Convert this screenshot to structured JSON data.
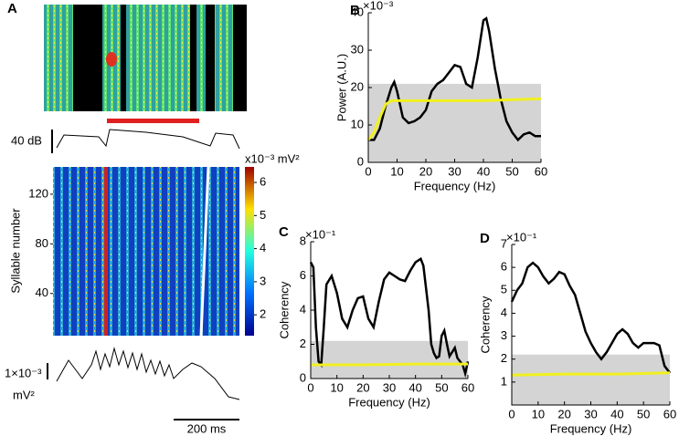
{
  "panels": {
    "a": "A",
    "b": "B",
    "c": "C",
    "d": "D"
  },
  "panel_a": {
    "amplitude_scale": "40 dB",
    "raster": {
      "ylabel": "Syllable number",
      "ylim": [
        6,
        142
      ],
      "yticks": [
        40,
        80,
        120
      ]
    },
    "colorbar": {
      "label": "x10⁻³ mV²",
      "lim": [
        1.37,
        6.47
      ],
      "ticks": [
        2,
        3,
        4,
        5,
        6
      ]
    },
    "power_scale": [
      "1×10⁻³",
      "mV²"
    ],
    "time_scale": "200 ms"
  },
  "chart_data": [
    {
      "type": "line",
      "multiplier": "×10⁻³",
      "ylabel": "Power (A.U.)",
      "xlabel": "Frequency (Hz)",
      "xlim": [
        0,
        60
      ],
      "xticks": [
        0,
        10,
        20,
        30,
        40,
        50,
        60
      ],
      "ylim": [
        0,
        40
      ],
      "yticks": [
        0,
        10,
        20,
        30,
        40
      ],
      "band": [
        0,
        21
      ],
      "band_color": "#d4d4d4",
      "series": [
        {
          "color": "#000000",
          "x": [
            0,
            2,
            4,
            6,
            8,
            9,
            10,
            12,
            14,
            16,
            18,
            20,
            22,
            24,
            26,
            28,
            30,
            32,
            34,
            36,
            38,
            40,
            41,
            42,
            44,
            46,
            48,
            50,
            52,
            54,
            56,
            58,
            60
          ],
          "values": [
            6,
            6,
            9,
            15,
            20,
            21.5,
            19,
            12,
            10.5,
            11,
            12,
            14,
            19,
            21,
            22,
            24,
            26,
            25.5,
            21,
            20,
            28,
            38,
            38.5,
            35,
            25,
            17,
            11,
            8,
            6,
            7.5,
            8,
            7,
            7
          ]
        },
        {
          "color": "#f0f020",
          "x": [
            0,
            2,
            4,
            6,
            8,
            20,
            40,
            60
          ],
          "values": [
            6,
            8,
            12,
            15.5,
            16.5,
            16.5,
            16.5,
            17
          ]
        }
      ]
    },
    {
      "type": "line",
      "multiplier": "×10⁻¹",
      "ylabel": "Coherency",
      "xlabel": "Frequency (Hz)",
      "xlim": [
        0,
        60
      ],
      "xticks": [
        0,
        10,
        20,
        30,
        40,
        50,
        60
      ],
      "ylim": [
        0,
        8
      ],
      "yticks": [
        0,
        2,
        4,
        6,
        8
      ],
      "band": [
        0,
        2.2
      ],
      "band_color": "#d4d4d4",
      "series": [
        {
          "color": "#000000",
          "x": [
            0,
            1,
            2,
            3,
            4,
            5,
            6,
            8,
            10,
            12,
            14,
            16,
            18,
            20,
            22,
            24,
            26,
            28,
            30,
            32,
            34,
            36,
            38,
            40,
            42,
            43,
            45,
            46,
            47,
            48,
            49,
            50,
            51,
            52,
            53,
            55,
            56,
            58,
            59,
            60
          ],
          "values": [
            6.8,
            6.5,
            3,
            1,
            0.8,
            3,
            5.5,
            6,
            5,
            3.5,
            3,
            4,
            4.7,
            4.8,
            3.5,
            3,
            4.5,
            5.8,
            6.2,
            6,
            5.8,
            5.7,
            6.3,
            6.8,
            7,
            6.6,
            4,
            2,
            1.5,
            1.2,
            1.3,
            2.5,
            2.8,
            2,
            1.3,
            1.8,
            1.2,
            0.8,
            0.3,
            1
          ]
        },
        {
          "color": "#f0f020",
          "x": [
            0,
            20,
            40,
            60
          ],
          "values": [
            0.8,
            0.8,
            0.85,
            0.85
          ]
        }
      ]
    },
    {
      "type": "line",
      "multiplier": "×10⁻¹",
      "ylabel": "Coherency",
      "xlabel": "Frequency (Hz)",
      "xlim": [
        0,
        60
      ],
      "xticks": [
        0,
        10,
        20,
        30,
        40,
        50,
        60
      ],
      "ylim": [
        0,
        7
      ],
      "yticks": [
        1,
        2,
        3,
        4,
        5,
        6,
        7
      ],
      "band": [
        0,
        2.2
      ],
      "band_color": "#d4d4d4",
      "series": [
        {
          "color": "#000000",
          "x": [
            0,
            2,
            4,
            6,
            8,
            10,
            12,
            14,
            16,
            18,
            20,
            22,
            24,
            26,
            28,
            30,
            32,
            34,
            36,
            38,
            40,
            42,
            44,
            46,
            48,
            50,
            52,
            54,
            56,
            58,
            60
          ],
          "values": [
            4.5,
            5,
            5.3,
            6,
            6.2,
            6,
            5.6,
            5.3,
            5.5,
            5.8,
            5.7,
            5.2,
            4.8,
            4,
            3.2,
            2.7,
            2.3,
            2,
            2.3,
            2.7,
            3.1,
            3.3,
            3.1,
            2.7,
            2.5,
            2.7,
            2.7,
            2.7,
            2.6,
            1.7,
            1.4
          ]
        },
        {
          "color": "#f0f020",
          "x": [
            0,
            20,
            40,
            60
          ],
          "values": [
            1.3,
            1.35,
            1.35,
            1.4
          ]
        }
      ]
    }
  ]
}
